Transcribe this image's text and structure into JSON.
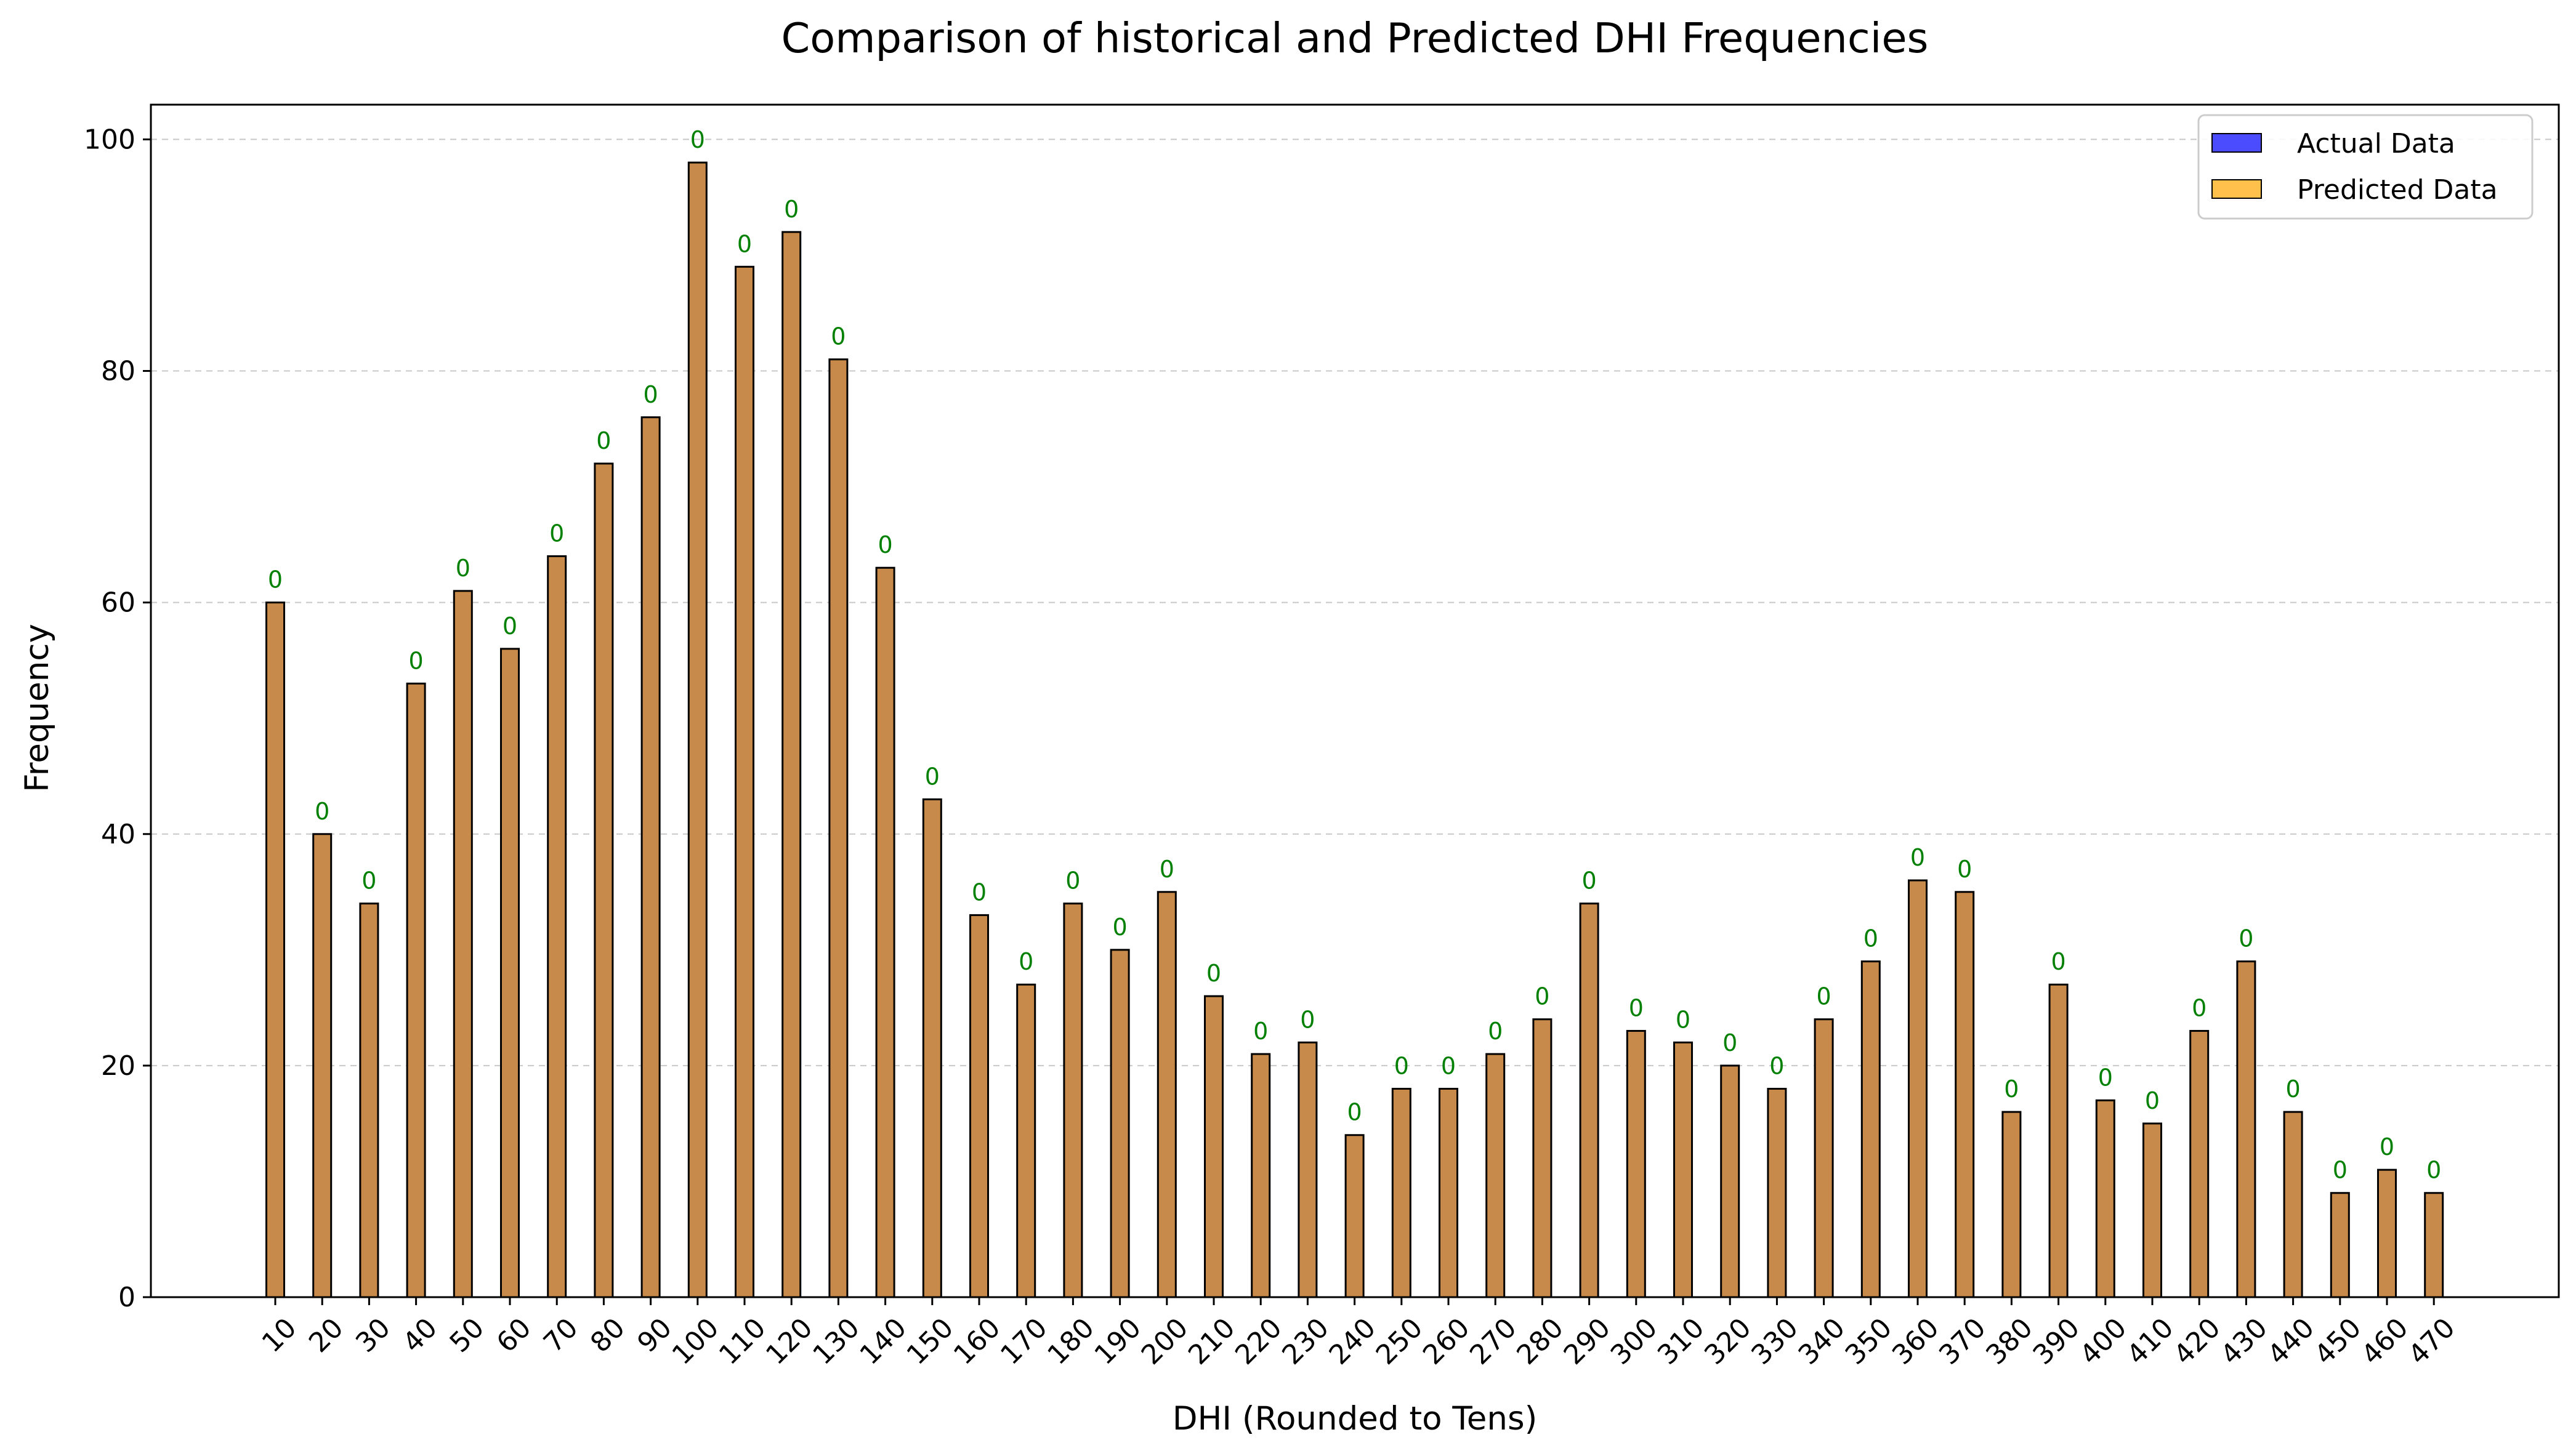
{
  "chart_data": {
    "type": "bar",
    "title": "Comparison of historical and Predicted DHI Frequencies",
    "xlabel": "DHI (Rounded to Tens)",
    "ylabel": "Frequency",
    "ylim": [
      0,
      103
    ],
    "yticks": [
      0,
      20,
      40,
      60,
      80,
      100
    ],
    "grid": "horizontal-dashed",
    "legend_placement": "top-right",
    "categories": [
      "10",
      "20",
      "30",
      "40",
      "50",
      "60",
      "70",
      "80",
      "90",
      "100",
      "110",
      "120",
      "130",
      "140",
      "150",
      "160",
      "170",
      "180",
      "190",
      "200",
      "210",
      "220",
      "230",
      "240",
      "250",
      "260",
      "270",
      "280",
      "290",
      "300",
      "310",
      "320",
      "330",
      "340",
      "350",
      "360",
      "370",
      "380",
      "390",
      "400",
      "410",
      "420",
      "430",
      "440",
      "450",
      "460",
      "470"
    ],
    "series": [
      {
        "name": "Actual Data",
        "color": "#0000ff",
        "values": [
          60,
          40,
          34,
          53,
          61,
          56,
          64,
          72,
          76,
          98,
          89,
          92,
          81,
          63,
          43,
          33,
          27,
          34,
          30,
          35,
          26,
          21,
          22,
          14,
          18,
          18,
          21,
          24,
          34,
          23,
          22,
          20,
          18,
          24,
          29,
          36,
          35,
          16,
          27,
          17,
          15,
          23,
          29,
          16,
          9,
          11,
          9
        ]
      },
      {
        "name": "Predicted Data",
        "color": "#ffa500",
        "values": [
          60,
          40,
          34,
          53,
          61,
          56,
          64,
          72,
          76,
          98,
          89,
          92,
          81,
          63,
          43,
          33,
          27,
          34,
          30,
          35,
          26,
          21,
          22,
          14,
          18,
          18,
          21,
          24,
          34,
          23,
          22,
          20,
          18,
          24,
          29,
          36,
          35,
          16,
          27,
          17,
          15,
          23,
          29,
          16,
          9,
          11,
          9
        ]
      }
    ],
    "bar_labels": [
      "0",
      "0",
      "0",
      "0",
      "0",
      "0",
      "0",
      "0",
      "0",
      "0",
      "0",
      "0",
      "0",
      "0",
      "0",
      "0",
      "0",
      "0",
      "0",
      "0",
      "0",
      "0",
      "0",
      "0",
      "0",
      "0",
      "0",
      "0",
      "0",
      "0",
      "0",
      "0",
      "0",
      "0",
      "0",
      "0",
      "0",
      "0",
      "0",
      "0",
      "0",
      "0",
      "0",
      "0",
      "0",
      "0",
      "0"
    ],
    "bar_label_color": "#008000",
    "overlap_color": "#c88a4a"
  }
}
